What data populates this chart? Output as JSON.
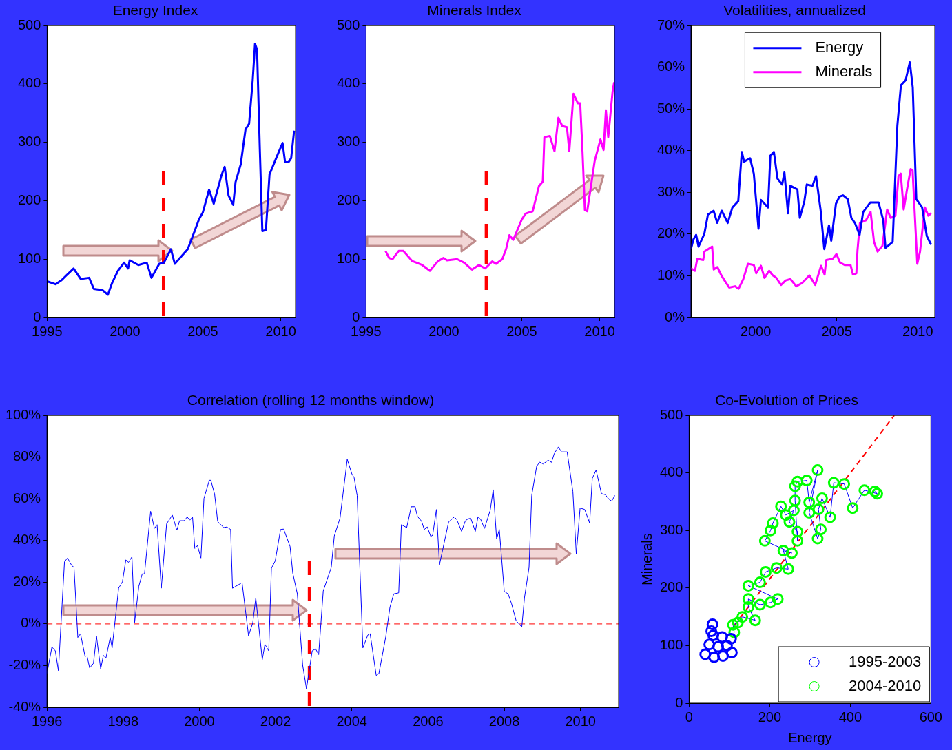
{
  "chart_data": [
    {
      "type": "line",
      "title": "Energy Index",
      "xlim": [
        1995,
        2010.95
      ],
      "xticks": [
        1995,
        2000,
        2005,
        2010
      ],
      "ylim": [
        0,
        500
      ],
      "yticks": [
        0,
        100,
        200,
        300,
        400,
        500
      ],
      "ref_lines": [
        {
          "axis": "x",
          "value": 2002.48,
          "color": "#ff0000",
          "line_style": "dashed"
        }
      ],
      "series": [
        {
          "color": "#0000ff",
          "x": [
            1995.0,
            1995.54,
            1995.93,
            1996.23,
            1996.7,
            1997.16,
            1997.7,
            1998.0,
            1998.55,
            1998.9,
            1999.17,
            1999.55,
            1999.94,
            2000.2,
            2000.3,
            2000.86,
            2001.4,
            2001.7,
            2002.2,
            2002.5,
            2002.95,
            2003.2,
            2003.6,
            2004.03,
            2004.5,
            2004.75,
            2005.0,
            2005.4,
            2005.7,
            2006.2,
            2006.4,
            2006.65,
            2006.95,
            2007.1,
            2007.43,
            2007.74,
            2007.97,
            2008.2,
            2008.35,
            2008.48,
            2008.66,
            2008.82,
            2009.05,
            2009.28,
            2009.74,
            2010.12,
            2010.28,
            2010.5,
            2010.67,
            2010.86
          ],
          "values": [
            62,
            57,
            64,
            72,
            84,
            66,
            68,
            49,
            47,
            39,
            59,
            80,
            94,
            84,
            98,
            90,
            94,
            68,
            92,
            94,
            117,
            92,
            104,
            117,
            150,
            168,
            180,
            219,
            195,
            244,
            258,
            209,
            193,
            232,
            262,
            322,
            332,
            406,
            469,
            459,
            287,
            148,
            150,
            245,
            275,
            299,
            266,
            266,
            273,
            320
          ]
        }
      ]
    },
    {
      "type": "line",
      "title": "Minerals Index",
      "xlim": [
        1995,
        2010.95
      ],
      "xticks": [
        1995,
        2000,
        2005,
        2010
      ],
      "ylim": [
        0,
        500
      ],
      "yticks": [
        0,
        100,
        200,
        300,
        400,
        500
      ],
      "ref_lines": [
        {
          "axis": "x",
          "value": 2002.73,
          "color": "#ff0000",
          "line_style": "dashed"
        }
      ],
      "series": [
        {
          "color": "#ff00ff",
          "x": [
            1996.25,
            1996.48,
            1996.7,
            1997.1,
            1997.4,
            1997.95,
            1998.6,
            1999.1,
            1999.6,
            1999.97,
            2000.2,
            2000.85,
            2001.3,
            2001.8,
            2002.25,
            2002.65,
            2003.1,
            2003.35,
            2003.75,
            2004.0,
            2004.2,
            2004.45,
            2005.0,
            2005.25,
            2005.7,
            2006.1,
            2006.35,
            2006.45,
            2006.8,
            2007.1,
            2007.35,
            2007.6,
            2007.9,
            2008.05,
            2008.32,
            2008.6,
            2008.75,
            2008.9,
            2009.05,
            2009.2,
            2009.68,
            2010.05,
            2010.25,
            2010.4,
            2010.55,
            2010.83,
            2010.93
          ],
          "values": [
            114,
            102,
            100,
            114,
            114,
            97,
            90,
            80,
            96,
            102,
            98,
            100,
            94,
            82,
            90,
            84,
            96,
            92,
            100,
            118,
            141,
            133,
            168,
            178,
            182,
            225,
            233,
            309,
            311,
            285,
            342,
            328,
            326,
            285,
            383,
            367,
            367,
            283,
            184,
            182,
            268,
            305,
            287,
            355,
            309,
            387,
            403
          ]
        }
      ]
    },
    {
      "type": "line",
      "title": "Volatilities, annualized",
      "xlim": [
        1996,
        2011.05
      ],
      "xticks": [
        2000,
        2005,
        2010
      ],
      "ylim": [
        0,
        70
      ],
      "yticks": [
        {
          "value": 0,
          "label": "0%"
        },
        {
          "value": 10,
          "label": "10%"
        },
        {
          "value": 20,
          "label": "20%"
        },
        {
          "value": 30,
          "label": "30%"
        },
        {
          "value": 40,
          "label": "40%"
        },
        {
          "value": 50,
          "label": "50%"
        },
        {
          "value": 60,
          "label": "60%"
        },
        {
          "value": 70,
          "label": "70%"
        }
      ],
      "legend": "top",
      "series": [
        {
          "name": "Energy",
          "color": "#0000ff",
          "x": [
            1996.0,
            1996.15,
            1996.32,
            1996.47,
            1996.83,
            1997.05,
            1997.4,
            1997.62,
            1997.9,
            1998.27,
            1998.56,
            1998.92,
            1999.14,
            1999.28,
            1999.65,
            1999.88,
            2000.17,
            2000.32,
            2000.76,
            2000.9,
            2001.12,
            2001.34,
            2001.63,
            2001.77,
            2001.99,
            2002.13,
            2002.57,
            2002.72,
            2003.0,
            2003.15,
            2003.5,
            2003.72,
            2004.0,
            2004.23,
            2004.52,
            2004.66,
            2004.95,
            2005.17,
            2005.39,
            2005.68,
            2005.9,
            2006.12,
            2006.41,
            2006.63,
            2007.07,
            2007.58,
            2007.87,
            2008.01,
            2008.45,
            2008.74,
            2008.96,
            2009.25,
            2009.51,
            2009.69,
            2009.91,
            2010.27,
            2010.56,
            2010.82
          ],
          "values": [
            16.4,
            18.7,
            19.8,
            17.0,
            20.1,
            24.7,
            25.6,
            22.7,
            25.6,
            22.7,
            26.4,
            27.9,
            39.7,
            37.4,
            38.2,
            34.5,
            21.3,
            28.2,
            26.4,
            38.8,
            39.7,
            33.3,
            31.9,
            34.8,
            25.0,
            31.6,
            30.7,
            23.9,
            27.9,
            31.9,
            31.6,
            33.9,
            25.9,
            16.4,
            22.1,
            18.4,
            27.3,
            29.0,
            29.3,
            28.4,
            23.9,
            22.7,
            19.8,
            25.3,
            27.6,
            27.6,
            23.3,
            16.7,
            18.1,
            46.0,
            55.7,
            56.9,
            61.2,
            55.2,
            28.4,
            26.4,
            19.5,
            17.5
          ]
        },
        {
          "name": "Minerals",
          "color": "#ff00ff",
          "x": [
            1996.0,
            1996.25,
            1996.39,
            1996.76,
            1996.83,
            1997.31,
            1997.41,
            1997.63,
            1997.85,
            1998.07,
            1998.36,
            1998.72,
            1998.94,
            1999.23,
            1999.52,
            1999.88,
            2000.03,
            2000.32,
            2000.54,
            2000.83,
            2001.05,
            2001.27,
            2001.56,
            2001.85,
            2002.14,
            2002.5,
            2002.87,
            2003.31,
            2003.67,
            2004.03,
            2004.25,
            2004.35,
            2004.76,
            2004.98,
            2005.2,
            2005.49,
            2005.85,
            2006.0,
            2006.21,
            2006.28,
            2006.43,
            2006.8,
            2007.09,
            2007.3,
            2007.52,
            2007.82,
            2008.11,
            2008.33,
            2008.62,
            2008.81,
            2008.95,
            2009.13,
            2009.35,
            2009.56,
            2009.68,
            2009.97,
            2010.14,
            2010.44,
            2010.65,
            2010.82
          ],
          "values": [
            11.8,
            11.2,
            14.1,
            13.8,
            15.8,
            17.0,
            11.5,
            12.1,
            10.3,
            8.9,
            7.2,
            7.5,
            6.9,
            9.2,
            12.9,
            12.6,
            10.6,
            12.4,
            9.5,
            11.2,
            10.1,
            9.5,
            7.8,
            8.9,
            9.2,
            7.5,
            8.3,
            10.1,
            7.8,
            12.4,
            10.3,
            13.8,
            14.1,
            15.2,
            13.2,
            12.6,
            12.6,
            10.3,
            10.6,
            16.1,
            22.7,
            23.3,
            25.3,
            18.1,
            15.8,
            17.2,
            25.9,
            23.9,
            24.4,
            33.9,
            34.5,
            25.9,
            31.0,
            35.6,
            35.3,
            12.9,
            15.8,
            26.4,
            24.4,
            25.0
          ]
        }
      ]
    },
    {
      "type": "line",
      "title": "Correlation (rolling 12 months window)",
      "xlim": [
        1996,
        2011
      ],
      "xticks": [
        1996,
        1998,
        2000,
        2002,
        2004,
        2006,
        2008,
        2010
      ],
      "ylim": [
        -40,
        100
      ],
      "yticks": [
        {
          "value": -40,
          "label": "-40%"
        },
        {
          "value": -20,
          "label": "-20%"
        },
        {
          "value": 0,
          "label": "0%"
        },
        {
          "value": 20,
          "label": "20%"
        },
        {
          "value": 40,
          "label": "40%"
        },
        {
          "value": 60,
          "label": "60%"
        },
        {
          "value": 80,
          "label": "80%"
        },
        {
          "value": 100,
          "label": "100%"
        }
      ],
      "ref_lines": [
        {
          "axis": "x",
          "value": 2002.89,
          "color": "#ff0000",
          "line_style": "dashed"
        },
        {
          "axis": "y",
          "value": 0,
          "color": "#ff0000",
          "line_style": "dashed"
        }
      ],
      "series": [
        {
          "color": "#0000ff",
          "x": [
            1996.0,
            1996.13,
            1996.22,
            1996.3,
            1996.46,
            1996.54,
            1996.65,
            1996.71,
            1996.81,
            1996.88,
            1997.0,
            1997.05,
            1997.12,
            1997.22,
            1997.3,
            1997.41,
            1997.48,
            1997.55,
            1997.66,
            1997.71,
            1997.88,
            1997.98,
            1998.07,
            1998.14,
            1998.23,
            1998.3,
            1998.41,
            1998.5,
            1998.56,
            1998.72,
            1998.82,
            1998.89,
            1999.0,
            1999.14,
            1999.29,
            1999.41,
            1999.48,
            1999.6,
            1999.68,
            1999.75,
            1999.82,
            1999.88,
            1999.95,
            2000.04,
            2000.12,
            2000.26,
            2000.3,
            2000.4,
            2000.48,
            2000.64,
            2000.72,
            2000.82,
            2000.87,
            2001.12,
            2001.29,
            2001.4,
            2001.48,
            2001.65,
            2001.72,
            2001.82,
            2001.89,
            2001.99,
            2002.13,
            2002.21,
            2002.38,
            2002.45,
            2002.57,
            2002.71,
            2002.81,
            2002.96,
            2003.05,
            2003.13,
            2003.25,
            2003.46,
            2003.54,
            2003.69,
            2003.88,
            2004.0,
            2004.06,
            2004.14,
            2004.29,
            2004.42,
            2004.48,
            2004.64,
            2004.71,
            2004.89,
            2005.0,
            2005.1,
            2005.23,
            2005.3,
            2005.44,
            2005.56,
            2005.66,
            2005.72,
            2005.83,
            2005.9,
            2005.98,
            2006.07,
            2006.12,
            2006.22,
            2006.3,
            2006.54,
            2006.69,
            2006.75,
            2006.88,
            2006.98,
            2007.05,
            2007.12,
            2007.24,
            2007.31,
            2007.38,
            2007.48,
            2007.63,
            2007.71,
            2007.8,
            2007.87,
            2008.0,
            2008.1,
            2008.19,
            2008.31,
            2008.46,
            2008.53,
            2008.65,
            2008.72,
            2008.85,
            2008.93,
            2009.02,
            2009.15,
            2009.24,
            2009.31,
            2009.42,
            2009.5,
            2009.65,
            2009.8,
            2009.89,
            2009.99,
            2010.11,
            2010.24,
            2010.31,
            2010.41,
            2010.55,
            2010.65,
            2010.75,
            2010.82,
            2010.9
          ],
          "values": [
            -23.8,
            -11.1,
            -12.9,
            -22.4,
            29.8,
            31.6,
            28.0,
            27.1,
            -6.5,
            -4.7,
            -15.6,
            -15.3,
            -21.1,
            -18.9,
            -6.0,
            -21.6,
            -15.1,
            -16.2,
            -6.5,
            -11.5,
            17.1,
            20.2,
            30.7,
            29.5,
            32.2,
            0.7,
            18.0,
            24.0,
            24.0,
            54.0,
            45.8,
            47.6,
            17.1,
            48.0,
            52.2,
            44.9,
            49.5,
            49.5,
            51.3,
            49.8,
            51.3,
            36.2,
            37.6,
            31.6,
            60.2,
            68.9,
            68.9,
            62.2,
            49.1,
            46.2,
            46.5,
            45.3,
            17.1,
            19.8,
            -5.6,
            0.4,
            12.5,
            -17.1,
            -9.8,
            -12.9,
            26.7,
            30.2,
            45.3,
            45.5,
            37.1,
            24.4,
            14.4,
            -19.8,
            -31.1,
            -12.9,
            -12.0,
            -14.7,
            15.8,
            27.1,
            42.2,
            50.7,
            78.9,
            72.0,
            70.2,
            61.6,
            -11.5,
            -5.3,
            -4.7,
            -24.7,
            -23.8,
            -6.2,
            8.0,
            14.4,
            14.9,
            47.6,
            46.2,
            56.2,
            56.2,
            51.6,
            49.3,
            45.3,
            46.5,
            42.0,
            42.5,
            54.9,
            28.4,
            48.9,
            51.3,
            50.2,
            44.4,
            49.5,
            50.4,
            50.7,
            44.4,
            51.3,
            50.2,
            45.8,
            54.4,
            64.4,
            40.7,
            45.3,
            15.6,
            14.4,
            9.8,
            1.6,
            -1.5,
            12.5,
            27.1,
            61.6,
            75.6,
            77.6,
            76.7,
            78.5,
            77.5,
            81.6,
            84.9,
            82.5,
            82.5,
            63.5,
            33.5,
            55.6,
            54.9,
            48.4,
            69.8,
            73.8,
            62.5,
            62.0,
            59.8,
            58.9,
            61.6
          ]
        }
      ]
    },
    {
      "type": "scatter",
      "title": "Co-Evolution of Prices",
      "xlabel": "Energy",
      "ylabel": "Minerals",
      "xlim": [
        0,
        600
      ],
      "xticks": [
        0,
        200,
        400,
        600
      ],
      "ylim": [
        0,
        500
      ],
      "yticks": [
        0,
        100,
        200,
        300,
        400,
        500
      ],
      "legend": "bottom right",
      "marker": "circle",
      "series": [
        {
          "name": "1995-2003",
          "color": "#0000ff",
          "x": [
            40,
            62,
            84,
            106,
            50,
            72,
            94,
            60,
            82,
            104,
            55,
            58
          ],
          "values": [
            85,
            80,
            82,
            88,
            102,
            98,
            100,
            118,
            115,
            112,
            125,
            137
          ]
        },
        {
          "name": "2004-2010",
          "color": "#00ff00",
          "x": [
            112,
            109,
            121,
            132,
            164,
            147,
            147,
            176,
            202,
            220,
            147,
            176,
            190,
            217,
            246,
            234,
            255,
            188,
            202,
            208,
            228,
            240,
            260,
            249,
            269,
            269,
            263,
            263,
            269,
            292,
            298,
            319,
            298,
            319,
            327,
            321,
            330,
            350,
            359,
            385,
            406,
            435,
            467,
            461
          ],
          "values": [
            123,
            136,
            140,
            150,
            144,
            167,
            181,
            171,
            175,
            181,
            204,
            210,
            228,
            235,
            233,
            265,
            261,
            282,
            300,
            313,
            342,
            327,
            335,
            315,
            298,
            282,
            352,
            377,
            385,
            387,
            349,
            405,
            331,
            286,
            302,
            337,
            356,
            323,
            383,
            381,
            339,
            370,
            364,
            368
          ]
        },
        {
          "type": "line",
          "marker": "none",
          "color": "#0000ff",
          "x": [
            112,
            109,
            121,
            132,
            164,
            147,
            147,
            176,
            202,
            220,
            147,
            176,
            190,
            217,
            246,
            234,
            255,
            188,
            202,
            208,
            228,
            240,
            260,
            249,
            269,
            269,
            263,
            263,
            269,
            292,
            298,
            319,
            298,
            319,
            327,
            321,
            330,
            350,
            359,
            385,
            406,
            435,
            467,
            461
          ],
          "values": [
            123,
            136,
            140,
            150,
            144,
            167,
            181,
            171,
            175,
            181,
            204,
            210,
            228,
            235,
            233,
            265,
            261,
            282,
            300,
            313,
            342,
            327,
            335,
            315,
            298,
            282,
            352,
            377,
            385,
            387,
            349,
            405,
            331,
            286,
            302,
            337,
            356,
            323,
            383,
            381,
            339,
            370,
            364,
            368
          ]
        },
        {
          "type": "line",
          "marker": "none",
          "color": "#ff0000",
          "line_style": "dashed",
          "x": [
            112,
            509
          ],
          "values": [
            135,
            500
          ]
        }
      ]
    }
  ]
}
